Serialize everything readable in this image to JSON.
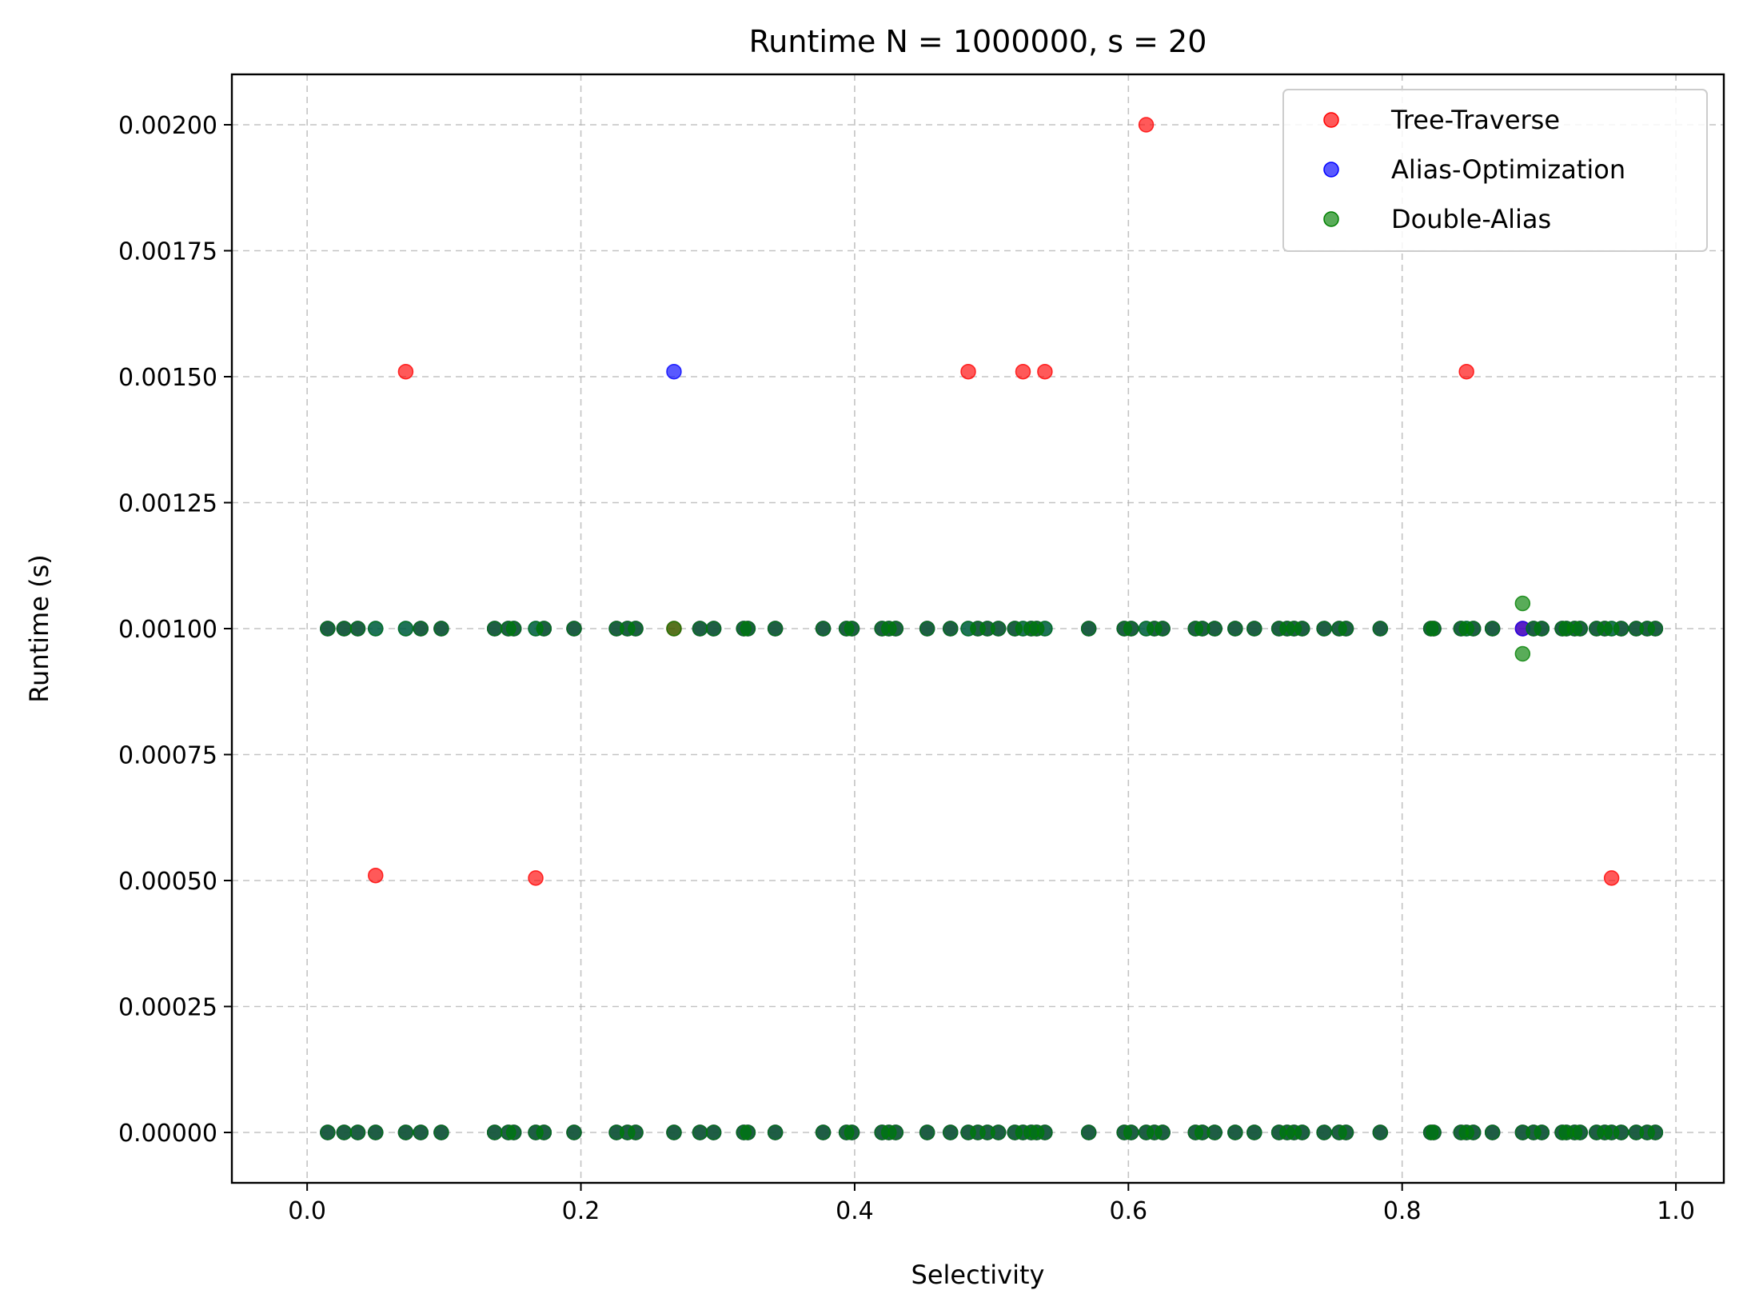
{
  "chart_data": {
    "type": "scatter",
    "title": "Runtime N = 1000000, s = 20",
    "xlabel": "Selectivity",
    "ylabel": "Runtime (s)",
    "xlim": [
      -0.055,
      1.035
    ],
    "ylim": [
      -0.0001,
      0.0021
    ],
    "xticks": [
      0.0,
      0.2,
      0.4,
      0.6,
      0.8,
      1.0
    ],
    "xtick_labels": [
      "0.0",
      "0.2",
      "0.4",
      "0.6",
      "0.8",
      "1.0"
    ],
    "yticks": [
      0.0,
      0.00025,
      0.0005,
      0.00075,
      0.001,
      0.00125,
      0.0015,
      0.00175,
      0.002
    ],
    "ytick_labels": [
      "0.00000",
      "0.00025",
      "0.00050",
      "0.00075",
      "0.00100",
      "0.00125",
      "0.00150",
      "0.00175",
      "0.00200"
    ],
    "grid": true,
    "legend_position": "top-right",
    "x_common": [
      0.015,
      0.027,
      0.037,
      0.05,
      0.072,
      0.083,
      0.098,
      0.137,
      0.147,
      0.151,
      0.167,
      0.173,
      0.195,
      0.226,
      0.234,
      0.24,
      0.268,
      0.287,
      0.297,
      0.319,
      0.322,
      0.342,
      0.377,
      0.394,
      0.398,
      0.42,
      0.425,
      0.43,
      0.453,
      0.47,
      0.483,
      0.49,
      0.497,
      0.505,
      0.517,
      0.523,
      0.529,
      0.533,
      0.539,
      0.571,
      0.597,
      0.602,
      0.613,
      0.619,
      0.625,
      0.649,
      0.654,
      0.663,
      0.678,
      0.692,
      0.71,
      0.716,
      0.721,
      0.727,
      0.743,
      0.754,
      0.759,
      0.784,
      0.821,
      0.823,
      0.843,
      0.847,
      0.852,
      0.866,
      0.888,
      0.896,
      0.902,
      0.917,
      0.92,
      0.926,
      0.93,
      0.942,
      0.948,
      0.953,
      0.96,
      0.971,
      0.979,
      0.985
    ],
    "series": [
      {
        "name": "Tree-Traverse",
        "color": "#ff0000",
        "outliers": [
          {
            "x": 0.072,
            "y": 0.00151
          },
          {
            "x": 0.483,
            "y": 0.00151
          },
          {
            "x": 0.523,
            "y": 0.00151
          },
          {
            "x": 0.539,
            "y": 0.00151
          },
          {
            "x": 0.847,
            "y": 0.00151
          },
          {
            "x": 0.613,
            "y": 0.002
          },
          {
            "x": 0.05,
            "y": 0.00051
          },
          {
            "x": 0.167,
            "y": 0.000505
          },
          {
            "x": 0.953,
            "y": 0.000505
          }
        ]
      },
      {
        "name": "Alias-Optimization",
        "color": "#0000ff",
        "outliers": [
          {
            "x": 0.268,
            "y": 0.00151
          }
        ]
      },
      {
        "name": "Double-Alias",
        "color": "#008000",
        "outliers": [
          {
            "x": 0.888,
            "y": 0.00105
          },
          {
            "x": 0.888,
            "y": 0.00095
          }
        ]
      }
    ]
  }
}
